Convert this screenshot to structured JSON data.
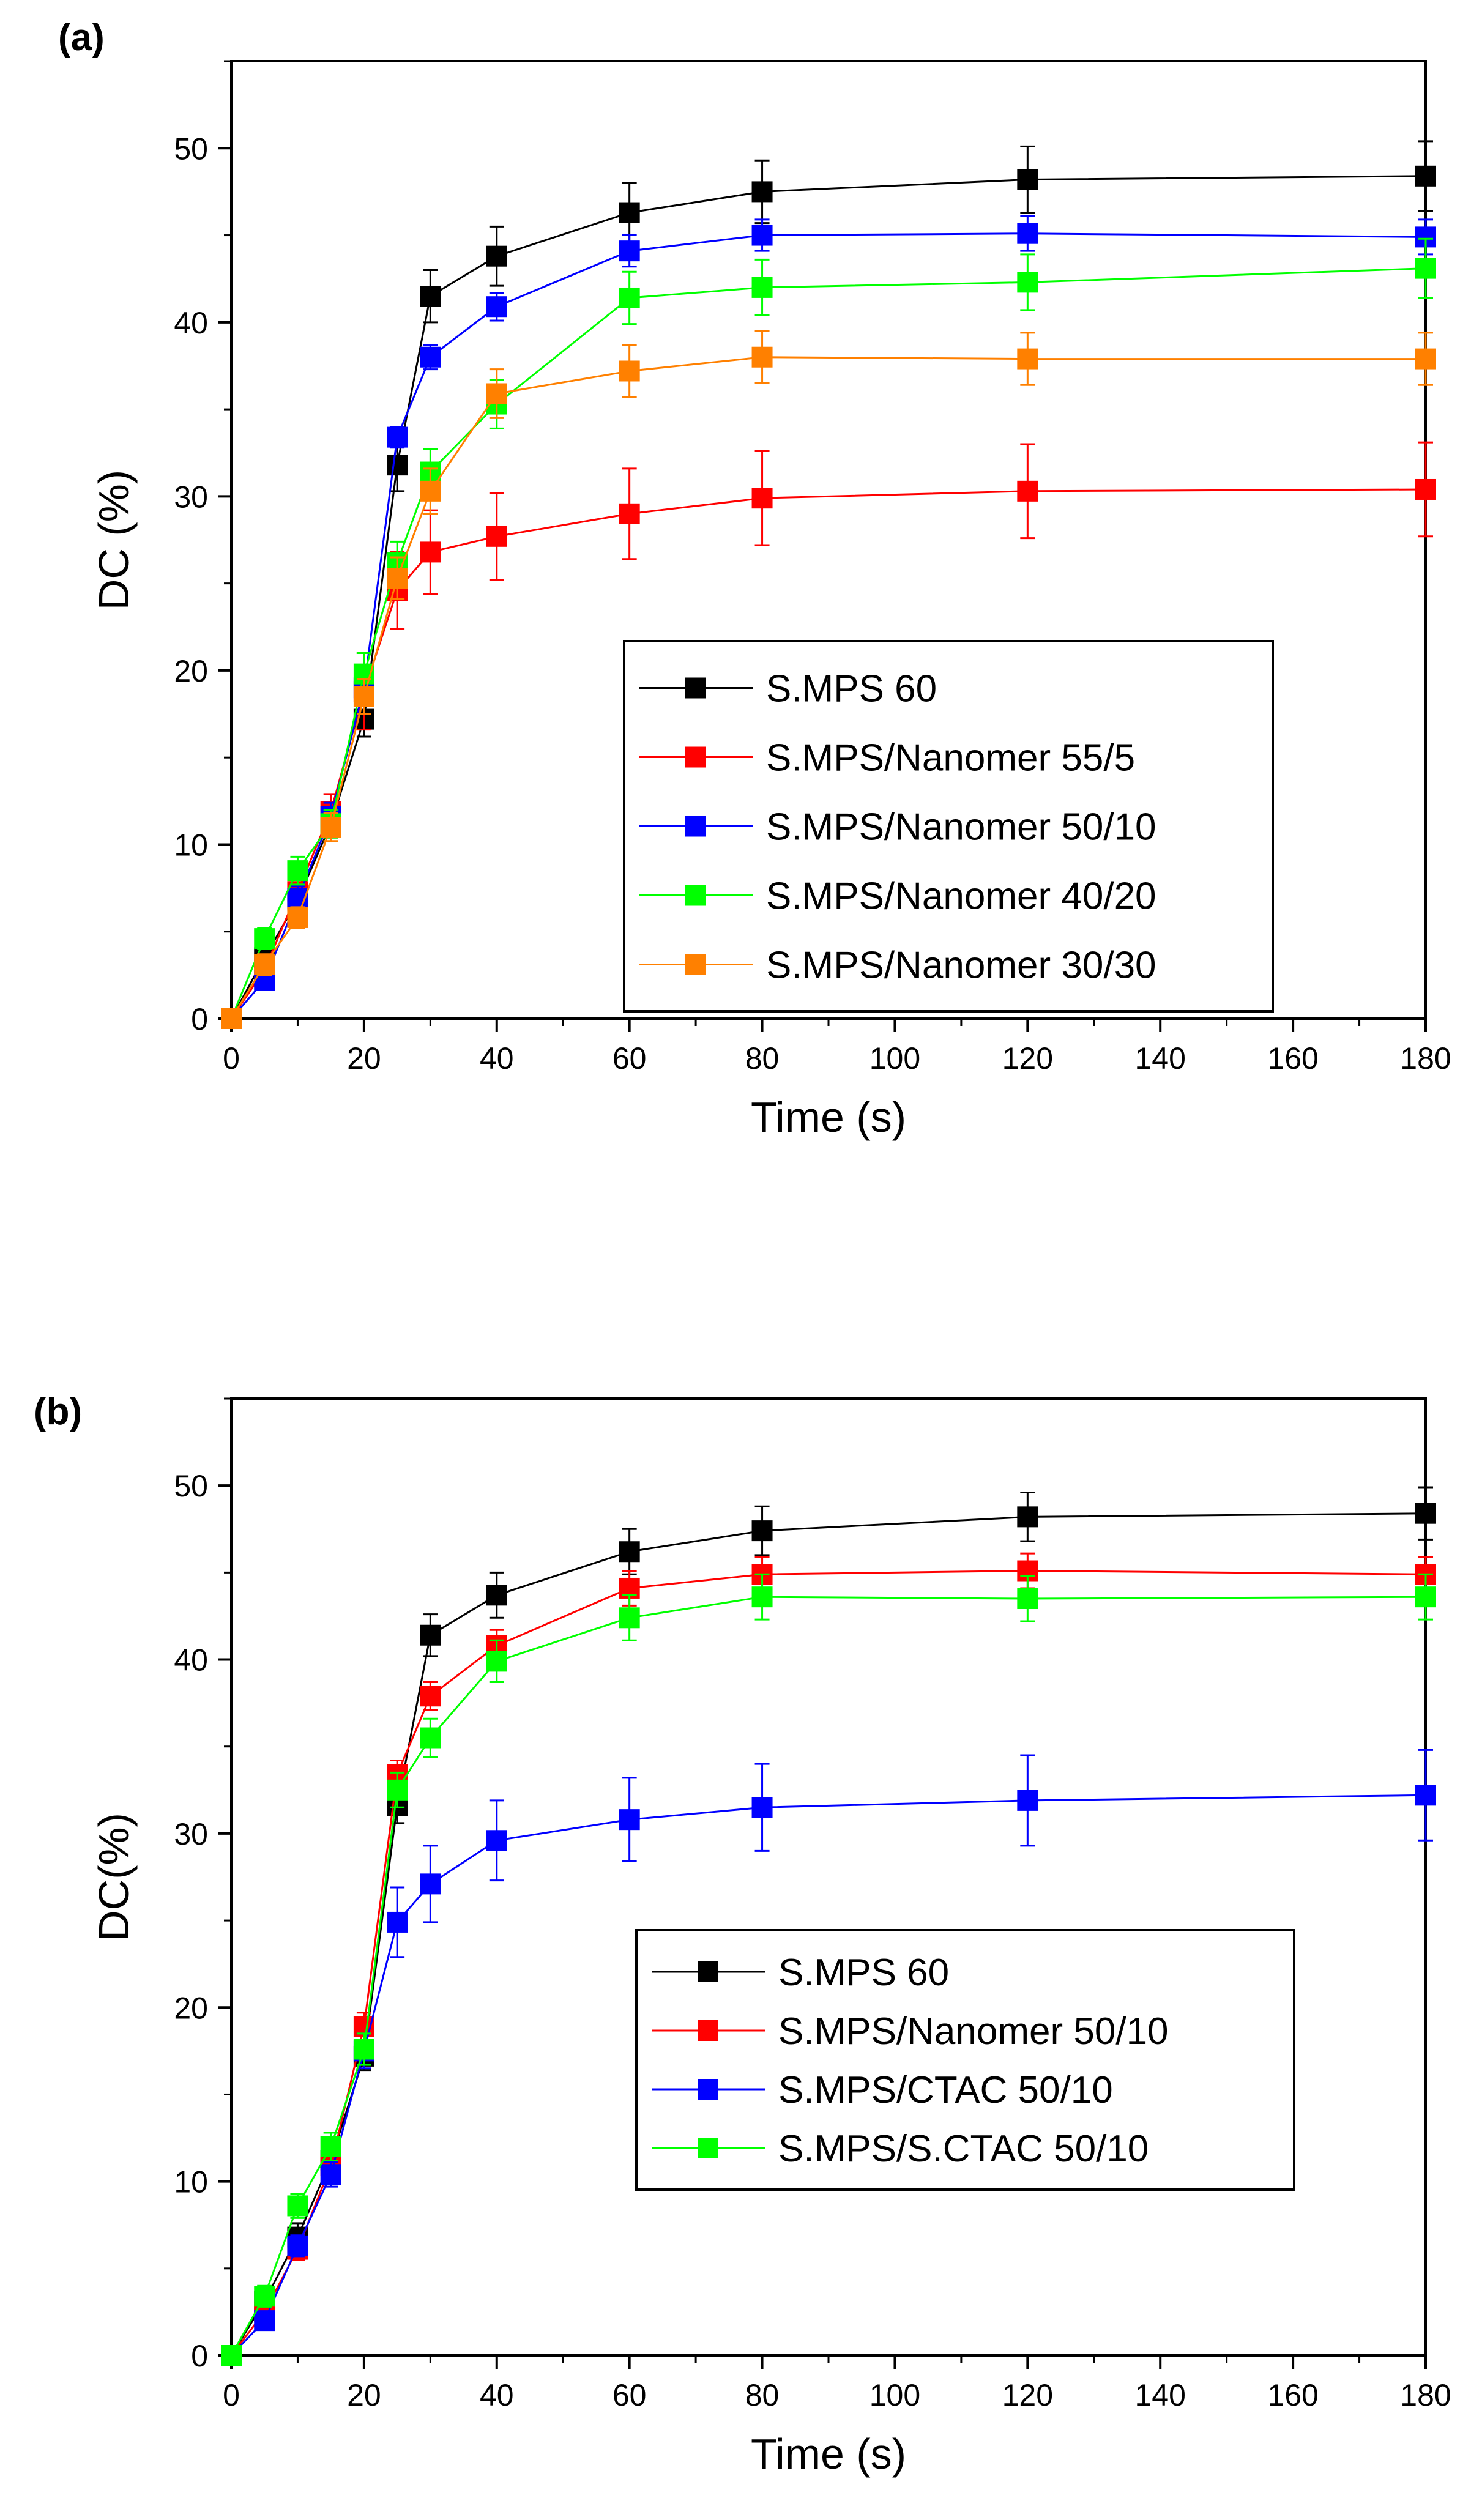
{
  "chart_data": [
    {
      "type": "line",
      "panel_label": "(a)",
      "xlabel": "Time (s)",
      "ylabel": "DC (%)",
      "xlim": [
        0,
        180
      ],
      "ylim": [
        0,
        55
      ],
      "x_ticks": [
        "0",
        "20",
        "40",
        "60",
        "80",
        "100",
        "120",
        "140",
        "160",
        "180"
      ],
      "y_ticks": [
        "0",
        "10",
        "20",
        "30",
        "40",
        "50"
      ],
      "legend_position": "center-right",
      "x": [
        0,
        5,
        10,
        15,
        20,
        25,
        30,
        40,
        60,
        80,
        120,
        180
      ],
      "series": [
        {
          "name": "S.MPS 60",
          "color": "#000000",
          "values": [
            0,
            3.5,
            6.8,
            11.2,
            17.2,
            31.8,
            41.5,
            43.8,
            46.3,
            47.5,
            48.2,
            48.4
          ],
          "errors": [
            0.5,
            0.6,
            0.8,
            0.8,
            1.0,
            1.5,
            1.5,
            1.7,
            1.7,
            1.8,
            1.9,
            2.0
          ]
        },
        {
          "name": "S.MPS/Nanomer 55/5",
          "color": "#ff0000",
          "values": [
            0,
            2.8,
            7.3,
            11.9,
            18.8,
            24.6,
            26.8,
            27.7,
            29.0,
            29.9,
            30.3,
            30.4
          ],
          "errors": [
            0.5,
            0.6,
            0.8,
            1.0,
            2.2,
            2.2,
            2.4,
            2.5,
            2.6,
            2.7,
            2.7,
            2.7
          ]
        },
        {
          "name": "S.MPS/Nanomer 50/10",
          "color": "#0000ff",
          "values": [
            0,
            2.2,
            6.9,
            11.6,
            19.0,
            33.4,
            38.0,
            40.9,
            44.1,
            45.0,
            45.1,
            44.9
          ],
          "errors": [
            0.5,
            0.5,
            0.7,
            0.8,
            1.0,
            0.6,
            0.7,
            0.8,
            0.9,
            0.9,
            1.0,
            1.0
          ]
        },
        {
          "name": "S.MPS/Nanomer 40/20",
          "color": "#00ff00",
          "values": [
            0,
            4.6,
            8.5,
            11.2,
            19.8,
            26.2,
            31.4,
            35.3,
            41.4,
            42.0,
            42.3,
            43.1
          ],
          "errors": [
            0.5,
            0.6,
            0.8,
            0.8,
            1.2,
            1.2,
            1.3,
            1.4,
            1.5,
            1.6,
            1.6,
            1.7
          ]
        },
        {
          "name": "S.MPS/Nanomer 30/30",
          "color": "#ff8000",
          "values": [
            0,
            3.1,
            5.8,
            11.0,
            18.5,
            25.3,
            30.3,
            35.9,
            37.2,
            38.0,
            37.9,
            37.9
          ],
          "errors": [
            0.5,
            0.6,
            0.6,
            0.8,
            1.0,
            1.2,
            1.3,
            1.4,
            1.5,
            1.5,
            1.5,
            1.5
          ]
        }
      ]
    },
    {
      "type": "line",
      "panel_label": "(b)",
      "xlabel": "Time (s)",
      "ylabel": "DC(%)",
      "xlim": [
        0,
        180
      ],
      "ylim": [
        0,
        55
      ],
      "x_ticks": [
        "0",
        "20",
        "40",
        "60",
        "80",
        "100",
        "120",
        "140",
        "160",
        "180"
      ],
      "y_ticks": [
        "0",
        "10",
        "20",
        "30",
        "40",
        "50"
      ],
      "legend_position": "center-right",
      "x": [
        0,
        5,
        10,
        15,
        20,
        25,
        30,
        40,
        60,
        80,
        120,
        180
      ],
      "series": [
        {
          "name": "S.MPS 60",
          "color": "#000000",
          "values": [
            0,
            3.1,
            6.8,
            11.2,
            17.2,
            31.6,
            41.4,
            43.7,
            46.2,
            47.4,
            48.2,
            48.4
          ],
          "errors": [
            0.5,
            0.6,
            0.8,
            0.8,
            0.8,
            1.0,
            1.2,
            1.3,
            1.3,
            1.4,
            1.4,
            1.5
          ]
        },
        {
          "name": "S.MPS/Nanomer 50/10",
          "color": "#ff0000",
          "values": [
            0,
            2.5,
            6.1,
            10.9,
            18.9,
            33.4,
            37.9,
            40.8,
            44.1,
            44.9,
            45.1,
            44.9
          ],
          "errors": [
            0.5,
            0.5,
            0.6,
            0.7,
            0.8,
            0.8,
            0.8,
            0.9,
            1.0,
            1.0,
            1.0,
            1.0
          ]
        },
        {
          "name": "S.MPS/CTAC 50/10",
          "color": "#0000ff",
          "values": [
            0,
            2.0,
            6.3,
            10.4,
            17.5,
            24.9,
            27.1,
            29.6,
            30.8,
            31.5,
            31.9,
            32.2
          ],
          "errors": [
            0.5,
            0.5,
            0.6,
            0.7,
            1.0,
            2.0,
            2.2,
            2.3,
            2.4,
            2.5,
            2.6,
            2.6
          ]
        },
        {
          "name": "S.MPS/S.CTAC 50/10",
          "color": "#00ff00",
          "values": [
            0,
            3.4,
            8.6,
            12.0,
            17.6,
            32.5,
            35.5,
            39.9,
            42.4,
            43.6,
            43.5,
            43.6
          ],
          "errors": [
            0.5,
            0.6,
            0.7,
            0.8,
            0.9,
            1.0,
            1.1,
            1.2,
            1.3,
            1.3,
            1.3,
            1.3
          ]
        }
      ]
    }
  ]
}
